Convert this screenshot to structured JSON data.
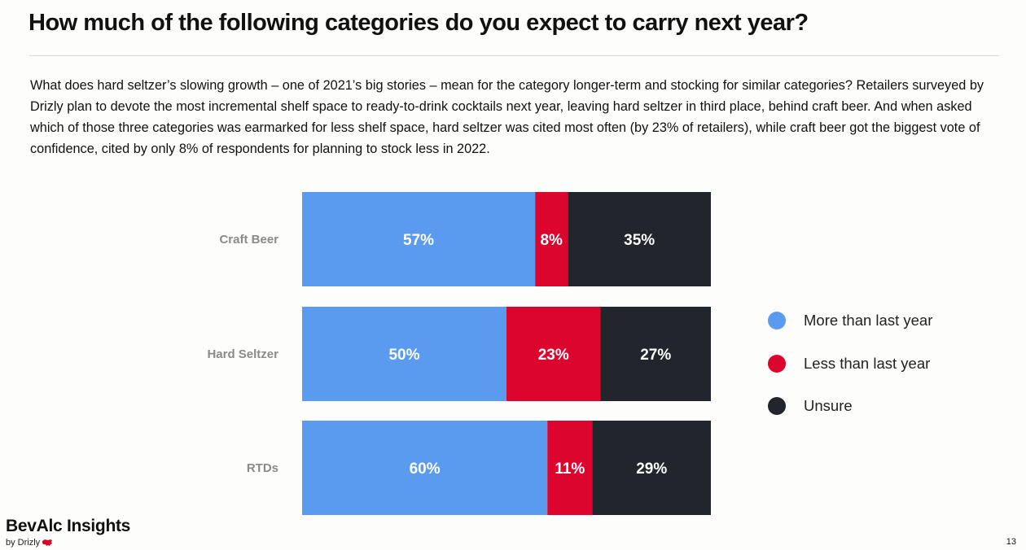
{
  "page": {
    "title": "How much of the following categories do you expect to carry next year?",
    "intro": "What does hard seltzer’s slowing growth – one of 2021’s big stories – mean for the category longer-term and stocking for similar categories? Retailers surveyed by Drizly plan to devote the most incremental shelf space to ready-to-drink cocktails next year, leaving hard seltzer in third place, behind craft beer. And when asked which of those three categories was earmarked for less shelf space, hard seltzer was cited most often (by 23% of retailers), while craft beer got the biggest vote of confidence, cited by only 8% of respondents for planning to stock less in 2022.",
    "page_number": "13"
  },
  "brand": {
    "name": "BevAlc Insights",
    "by": "by Drizly",
    "logo_icon": "drizly-bear-icon",
    "logo_color": "#d9062b"
  },
  "chart_data": {
    "type": "bar",
    "orientation": "horizontal",
    "stacked": true,
    "percent": true,
    "categories": [
      "Craft Beer",
      "Hard Seltzer",
      "RTDs"
    ],
    "series": [
      {
        "name": "More than last year",
        "values": [
          57,
          50,
          60
        ],
        "color": "#5b9bef"
      },
      {
        "name": "Less than last year",
        "values": [
          8,
          23,
          11
        ],
        "color": "#dc052d"
      },
      {
        "name": "Unsure",
        "values": [
          35,
          27,
          29
        ],
        "color": "#22252b"
      }
    ],
    "data_labels": [
      [
        "57%",
        "8%",
        "35%"
      ],
      [
        "50%",
        "23%",
        "27%"
      ],
      [
        "60%",
        "11%",
        "29%"
      ]
    ],
    "xlim": [
      0,
      100
    ],
    "grid": false,
    "legend_position": "right"
  }
}
